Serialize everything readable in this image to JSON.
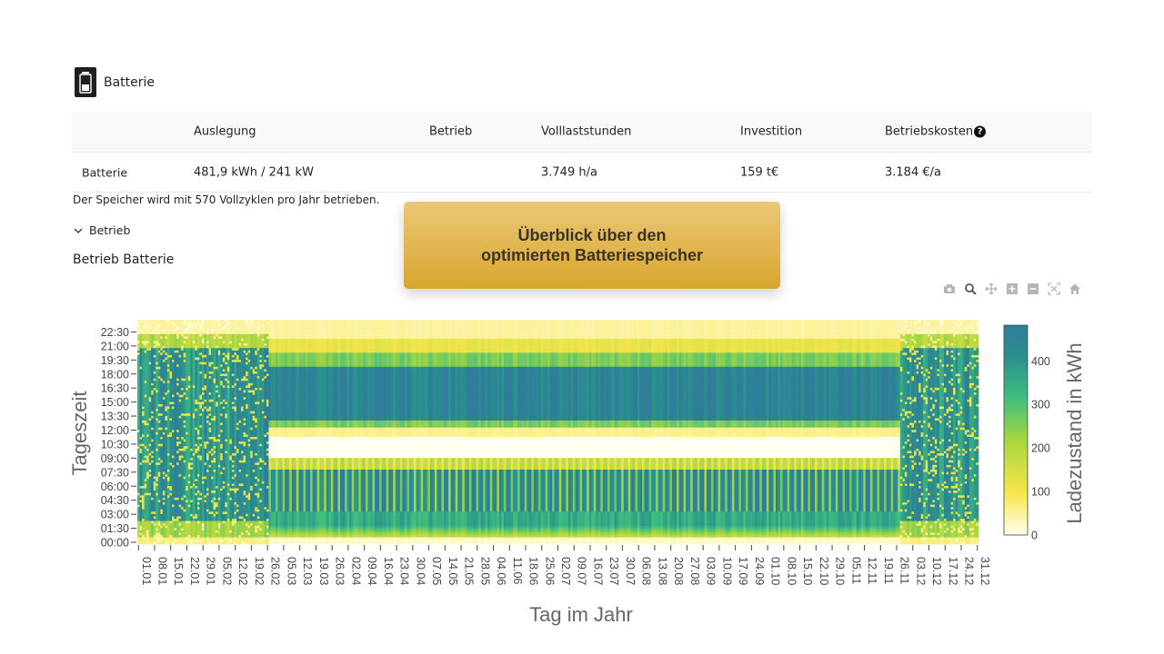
{
  "section": {
    "title": "Batterie",
    "icon": "battery-icon"
  },
  "table": {
    "headers": [
      "",
      "Auslegung",
      "Betrieb",
      "Volllaststunden",
      "Investition",
      "Betriebskosten"
    ],
    "help_icon_label": "?",
    "row": [
      "Batterie",
      "481,9 kWh / 241 kW",
      "",
      "3.749 h/a",
      "159 t€",
      "3.184 €/a"
    ]
  },
  "note": "Der Speicher wird mit 570 Vollzyklen pro Jahr betrieben.",
  "toggle": {
    "label": "Betrieb",
    "icon": "chevron-down-icon"
  },
  "chart_title": "Betrieb Batterie",
  "banner": {
    "line1": "Überblick über den",
    "line2": "optimierten Batteriespeicher"
  },
  "modebar": [
    "camera-icon",
    "zoom-icon",
    "pan-icon",
    "zoom-in-icon",
    "zoom-out-icon",
    "autoscale-icon",
    "reset-axes-icon"
  ],
  "colors": {
    "colorscale": [
      "#fffff0",
      "#f7e64c",
      "#a9d63f",
      "#3fbf7f",
      "#2a8f8e",
      "#2e7d99"
    ],
    "axis_text": "#444444",
    "banner_top": "#e9c878",
    "banner_bottom": "#d9a52c"
  },
  "chart_data": {
    "type": "heatmap",
    "xlabel": "Tag im Jahr",
    "ylabel": "Tageszeit",
    "colorbar_title": "Ladezustand in kWh",
    "colorbar_ticks": [
      0,
      100,
      200,
      300,
      400
    ],
    "zlim": [
      0,
      482
    ],
    "x_ticks": [
      "01.01",
      "08.01",
      "15.01",
      "22.01",
      "29.01",
      "05.02",
      "12.02",
      "19.02",
      "26.02",
      "05.03",
      "12.03",
      "19.03",
      "26.03",
      "02.04",
      "09.04",
      "16.04",
      "23.04",
      "30.04",
      "07.05",
      "14.05",
      "21.05",
      "28.05",
      "04.06",
      "11.06",
      "18.06",
      "25.06",
      "02.07",
      "09.07",
      "16.07",
      "23.07",
      "30.07",
      "06.08",
      "13.08",
      "20.08",
      "27.08",
      "03.09",
      "10.09",
      "17.09",
      "24.09",
      "01.10",
      "08.10",
      "15.10",
      "22.10",
      "29.10",
      "05.11",
      "12.11",
      "19.11",
      "26.11",
      "03.12",
      "10.12",
      "17.12",
      "24.12",
      "31.12"
    ],
    "y_ticks": [
      "00:00",
      "01:30",
      "03:00",
      "04:30",
      "06:00",
      "07:30",
      "09:00",
      "10:30",
      "12:00",
      "13:30",
      "15:00",
      "16:30",
      "18:00",
      "19:30",
      "21:00",
      "22:30"
    ],
    "pattern": {
      "description": "",
      "days": 365,
      "slots_per_day": 96
    }
  }
}
